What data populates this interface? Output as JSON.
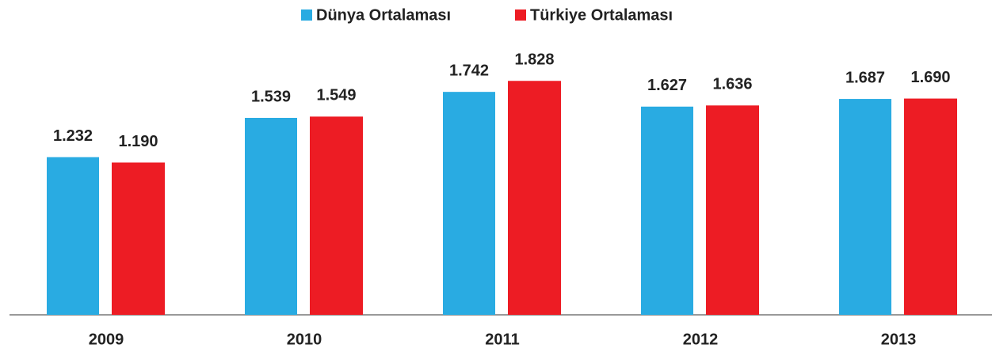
{
  "chart_data": {
    "type": "bar",
    "categories": [
      "2009",
      "2010",
      "2011",
      "2012",
      "2013"
    ],
    "series": [
      {
        "name": "Dünya Ortalaması",
        "color": "#29abe2",
        "values": [
          1232,
          1539,
          1742,
          1627,
          1687
        ],
        "value_labels": [
          "1.232",
          "1.539",
          "1.742",
          "1.627",
          "1.687"
        ]
      },
      {
        "name": "Türkiye Ortalaması",
        "color": "#ed1c24",
        "values": [
          1190,
          1549,
          1828,
          1636,
          1690
        ],
        "value_labels": [
          "1.190",
          "1.549",
          "1.828",
          "1.636",
          "1.690"
        ]
      }
    ],
    "ylim": [
      0,
      2460
    ],
    "legend": "top"
  }
}
